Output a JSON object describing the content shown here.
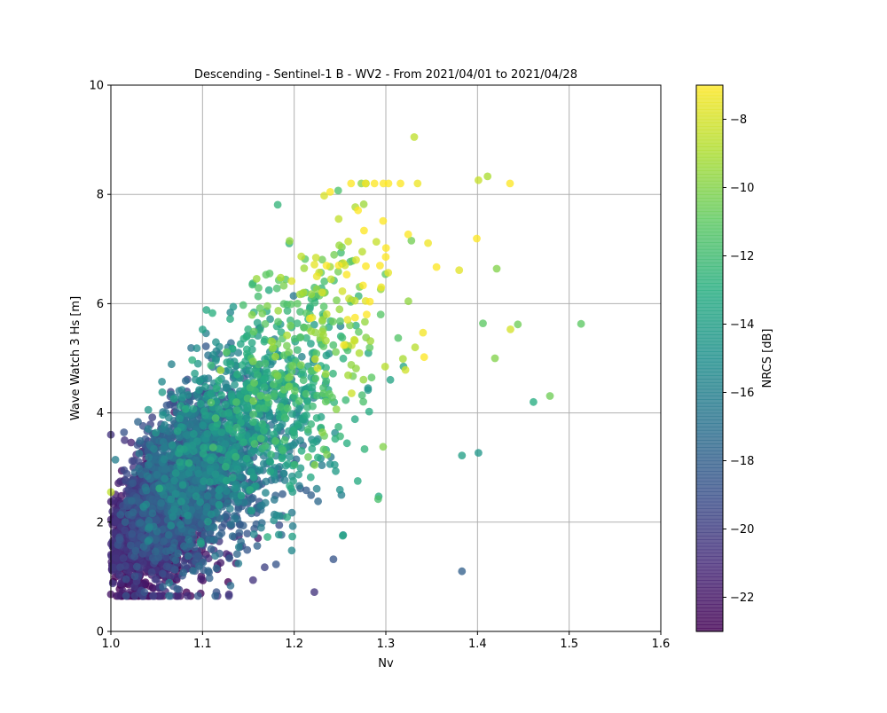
{
  "chart_data": {
    "type": "scatter",
    "title": "Descending - Sentinel-1 B - WV2 - From 2021/04/01 to 2021/04/28",
    "xlabel": "Nv",
    "ylabel": "Wave Watch 3 Hs [m]",
    "xlim": [
      1.0,
      1.6
    ],
    "ylim": [
      0,
      10
    ],
    "x_ticks": [
      "1.0",
      "1.1",
      "1.2",
      "1.3",
      "1.4",
      "1.5",
      "1.6"
    ],
    "y_ticks": [
      "0",
      "2",
      "4",
      "6",
      "8",
      "10"
    ],
    "grid": true,
    "colorbar": {
      "label": "NRCS [dB]",
      "range": [
        -23,
        -7
      ],
      "ticks": [
        "−22",
        "−20",
        "−18",
        "−16",
        "−14",
        "−12",
        "−10",
        "−8"
      ],
      "colormap": "viridis"
    },
    "points_note": "Approximately 4000 points; dense cluster from Nv 1.0–1.3, Hs 0.7–6; high-NRCS (yellow) points at higher Nv and Hs",
    "outliers": [
      {
        "x": 1.331,
        "y": 9.05,
        "c": -8.5
      },
      {
        "x": 1.411,
        "y": 8.33,
        "c": -9.0
      },
      {
        "x": 1.401,
        "y": 8.26,
        "c": -8.3
      },
      {
        "x": 1.248,
        "y": 8.07,
        "c": -11.5
      },
      {
        "x": 1.182,
        "y": 7.81,
        "c": -12.5
      },
      {
        "x": 1.421,
        "y": 6.64,
        "c": -10.0
      },
      {
        "x": 1.513,
        "y": 5.63,
        "c": -11.0
      },
      {
        "x": 1.444,
        "y": 5.62,
        "c": -10.5
      },
      {
        "x": 1.406,
        "y": 5.64,
        "c": -11.0
      },
      {
        "x": 1.436,
        "y": 5.53,
        "c": -8.0
      },
      {
        "x": 1.419,
        "y": 5.0,
        "c": -10.0
      },
      {
        "x": 1.479,
        "y": 4.31,
        "c": -10.5
      },
      {
        "x": 1.461,
        "y": 4.2,
        "c": -13.0
      },
      {
        "x": 1.401,
        "y": 3.27,
        "c": -14.5
      },
      {
        "x": 1.383,
        "y": 3.22,
        "c": -14.0
      },
      {
        "x": 1.383,
        "y": 1.1,
        "c": -18.0
      },
      {
        "x": 1.222,
        "y": 0.72,
        "c": -20.5
      },
      {
        "x": 1.061,
        "y": 4.14,
        "c": -18.5
      },
      {
        "x": 1.118,
        "y": 5.08,
        "c": -18.0
      },
      {
        "x": 1.0,
        "y": 3.6,
        "c": -20.5
      },
      {
        "x": 1.015,
        "y": 3.5,
        "c": -20.5
      },
      {
        "x": 1.047,
        "y": 3.62,
        "c": -19.5
      },
      {
        "x": 1.0,
        "y": 0.68,
        "c": -22.0
      },
      {
        "x": 1.0,
        "y": 2.55,
        "c": -8.5
      }
    ],
    "colors": {
      "viridis": [
        "#440154",
        "#472c7a",
        "#3b518b",
        "#2c718e",
        "#21908d",
        "#27ad81",
        "#5cc863",
        "#aadc32",
        "#fde725"
      ]
    }
  }
}
